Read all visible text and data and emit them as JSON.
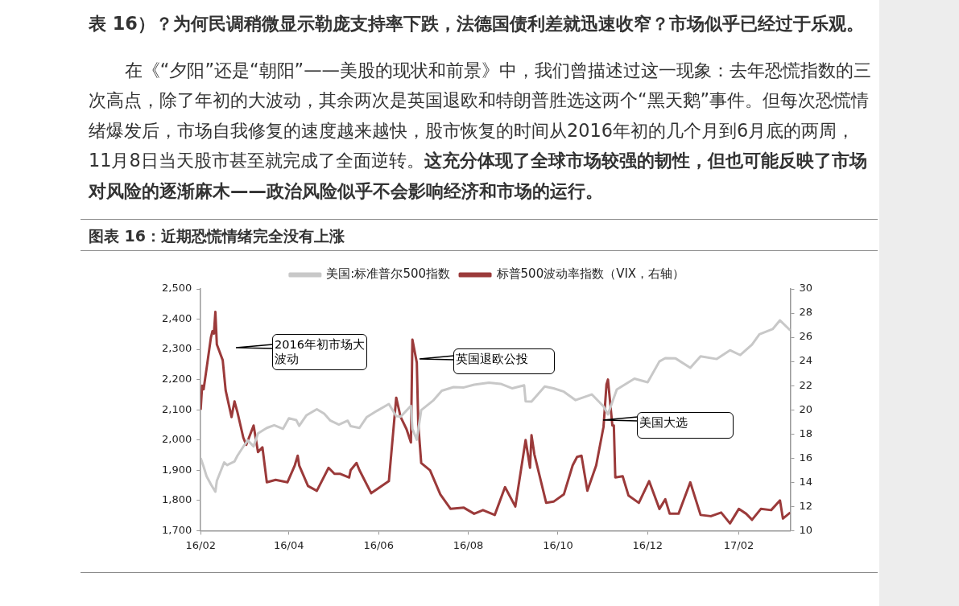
{
  "chart_data": {
    "type": "line",
    "title": "图表 16：近期恐慌情绪完全没有上涨",
    "annotations": [
      "表 16）？为何民调稍微显示勒庞支持率下跌，法德国债利差就迅速收窄？市场似乎已经过于乐观。",
      "在《“夕阳”还是“朝阳”——美股的现状和前景》中，我们曾描述过这一现象：去年恐慌指数的三次高点，除了年初的大波动，其余两次是英国退欧和特朗普胜选这两个“黑天鹅”事件。但每次恐慌情绪爆发后，市场自我修复的速度越来越快，股市恢复的时间从2016年初的几个月到6月底的两周，11月8日当天股市甚至就完成了全面逆转。",
      "这充分体现了全球市场较强的韧性，但也可能反映了市场对风险的逐渐麻木——政治风险似乎不会影响经济和市场的运行。",
      "2016年初市场大波动",
      "英国退欧公投",
      "美国大选"
    ],
    "legend": "top",
    "grid": false,
    "marker": "none",
    "line_style": "solid",
    "xlim": [
      "2016-02-01",
      "2017-03-08"
    ],
    "xticks": [
      {
        "value": "2016-02-01",
        "label": "16/02"
      },
      {
        "value": "2016-04-01",
        "label": "16/04"
      },
      {
        "value": "2016-06-01",
        "label": "16/06"
      },
      {
        "value": "2016-08-01",
        "label": "16/08"
      },
      {
        "value": "2016-10-01",
        "label": "16/10"
      },
      {
        "value": "2016-12-01",
        "label": "16/12"
      },
      {
        "value": "2017-02-01",
        "label": "17/02"
      }
    ],
    "ylim": [
      1700,
      2500
    ],
    "yticks": [
      {
        "value": 1700,
        "label": "1,700"
      },
      {
        "value": 1800,
        "label": "1,800"
      },
      {
        "value": 1900,
        "label": "1,900"
      },
      {
        "value": 2000,
        "label": "2,000"
      },
      {
        "value": 2100,
        "label": "2,100"
      },
      {
        "value": 2200,
        "label": "2,200"
      },
      {
        "value": 2300,
        "label": "2,300"
      },
      {
        "value": 2400,
        "label": "2,400"
      },
      {
        "value": 2500,
        "label": "2,500"
      }
    ],
    "y2lim": [
      10,
      30
    ],
    "y2ticks": [
      10,
      12,
      14,
      16,
      18,
      20,
      22,
      24,
      26,
      28,
      30
    ],
    "series": [
      {
        "name": "美国:标准普尔500指数",
        "color": "#c8c8c8",
        "x": [
          "2016-02-01",
          "2016-02-03",
          "2016-02-05",
          "2016-02-08",
          "2016-02-11",
          "2016-02-12",
          "2016-02-17",
          "2016-02-19",
          "2016-02-24",
          "2016-02-26",
          "2016-03-01",
          "2016-03-04",
          "2016-03-08",
          "2016-03-11",
          "2016-03-17",
          "2016-03-22",
          "2016-03-28",
          "2016-04-01",
          "2016-04-06",
          "2016-04-08",
          "2016-04-13",
          "2016-04-20",
          "2016-04-25",
          "2016-04-29",
          "2016-05-05",
          "2016-05-11",
          "2016-05-13",
          "2016-05-19",
          "2016-05-24",
          "2016-05-31",
          "2016-06-08",
          "2016-06-13",
          "2016-06-16",
          "2016-06-23",
          "2016-06-24",
          "2016-06-27",
          "2016-06-30",
          "2016-07-08",
          "2016-07-14",
          "2016-07-22",
          "2016-07-29",
          "2016-08-05",
          "2016-08-15",
          "2016-08-23",
          "2016-08-31",
          "2016-09-08",
          "2016-09-09",
          "2016-09-13",
          "2016-09-22",
          "2016-09-28",
          "2016-10-05",
          "2016-10-13",
          "2016-10-24",
          "2016-11-01",
          "2016-11-04",
          "2016-11-08",
          "2016-11-10",
          "2016-11-22",
          "2016-12-01",
          "2016-12-09",
          "2016-12-13",
          "2016-12-20",
          "2016-12-30",
          "2017-01-06",
          "2017-01-17",
          "2017-01-26",
          "2017-02-02",
          "2017-02-10",
          "2017-02-15",
          "2017-02-24",
          "2017-03-01",
          "2017-03-08"
        ],
        "values": [
          1940,
          1912,
          1880,
          1853,
          1829,
          1865,
          1926,
          1917,
          1929,
          1948,
          1978,
          1999,
          1979,
          2022,
          2040,
          2049,
          2037,
          2072,
          2066,
          2047,
          2082,
          2102,
          2087,
          2065,
          2051,
          2064,
          2046,
          2040,
          2076,
          2097,
          2119,
          2079,
          2077,
          2113,
          2037,
          2001,
          2099,
          2130,
          2163,
          2175,
          2174,
          2183,
          2190,
          2186,
          2171,
          2181,
          2128,
          2127,
          2177,
          2171,
          2160,
          2132,
          2151,
          2111,
          2085,
          2140,
          2167,
          2203,
          2191,
          2260,
          2271,
          2270,
          2239,
          2277,
          2268,
          2297,
          2281,
          2316,
          2350,
          2367,
          2396,
          2363
        ]
      },
      {
        "name": "标普500波动率指数（VIX，右轴）",
        "color": "#9b3a3a",
        "axis": "y2",
        "x": [
          "2016-02-01",
          "2016-02-02",
          "2016-02-03",
          "2016-02-05",
          "2016-02-08",
          "2016-02-09",
          "2016-02-10",
          "2016-02-11",
          "2016-02-12",
          "2016-02-16",
          "2016-02-18",
          "2016-02-22",
          "2016-02-24",
          "2016-02-26",
          "2016-03-01",
          "2016-03-03",
          "2016-03-08",
          "2016-03-11",
          "2016-03-14",
          "2016-03-17",
          "2016-03-23",
          "2016-03-31",
          "2016-04-05",
          "2016-04-07",
          "2016-04-08",
          "2016-04-14",
          "2016-04-20",
          "2016-04-28",
          "2016-05-02",
          "2016-05-06",
          "2016-05-12",
          "2016-05-13",
          "2016-05-17",
          "2016-05-19",
          "2016-05-27",
          "2016-06-08",
          "2016-06-13",
          "2016-06-16",
          "2016-06-20",
          "2016-06-23",
          "2016-06-24",
          "2016-06-27",
          "2016-06-28",
          "2016-06-30",
          "2016-07-06",
          "2016-07-13",
          "2016-07-20",
          "2016-07-29",
          "2016-08-05",
          "2016-08-11",
          "2016-08-19",
          "2016-08-26",
          "2016-09-02",
          "2016-09-09",
          "2016-09-12",
          "2016-09-13",
          "2016-09-15",
          "2016-09-21",
          "2016-09-23",
          "2016-09-28",
          "2016-10-05",
          "2016-10-11",
          "2016-10-14",
          "2016-10-17",
          "2016-10-21",
          "2016-10-27",
          "2016-11-01",
          "2016-11-03",
          "2016-11-04",
          "2016-11-07",
          "2016-11-08",
          "2016-11-09",
          "2016-11-14",
          "2016-11-18",
          "2016-11-25",
          "2016-12-02",
          "2016-12-09",
          "2016-12-13",
          "2016-12-16",
          "2016-12-22",
          "2016-12-30",
          "2017-01-06",
          "2017-01-13",
          "2017-01-20",
          "2017-01-26",
          "2017-02-01",
          "2017-02-06",
          "2017-02-10",
          "2017-02-16",
          "2017-02-23",
          "2017-03-01",
          "2017-03-03",
          "2017-03-08"
        ],
        "values": [
          20.0,
          22.0,
          21.7,
          23.4,
          26.0,
          26.5,
          26.3,
          28.1,
          25.4,
          24.1,
          21.6,
          19.4,
          20.7,
          19.8,
          17.7,
          17.1,
          18.7,
          16.5,
          16.9,
          14.0,
          14.2,
          14.0,
          15.4,
          16.2,
          15.4,
          13.7,
          13.3,
          15.2,
          14.7,
          14.7,
          14.4,
          15.0,
          15.6,
          15.0,
          13.1,
          14.1,
          21.0,
          19.4,
          18.4,
          17.3,
          25.8,
          23.9,
          18.8,
          15.6,
          15.0,
          13.0,
          11.8,
          11.9,
          11.4,
          11.7,
          11.3,
          13.6,
          12.0,
          17.5,
          15.2,
          17.9,
          16.3,
          13.3,
          12.3,
          12.4,
          13.0,
          15.4,
          16.1,
          16.2,
          13.3,
          15.4,
          18.6,
          22.1,
          22.5,
          18.7,
          18.7,
          14.4,
          14.5,
          12.9,
          12.3,
          14.1,
          11.8,
          12.6,
          11.4,
          11.4,
          14.0,
          11.3,
          11.2,
          11.5,
          10.6,
          11.8,
          11.4,
          10.9,
          11.8,
          11.7,
          12.5,
          11.0,
          11.5
        ]
      }
    ]
  }
}
